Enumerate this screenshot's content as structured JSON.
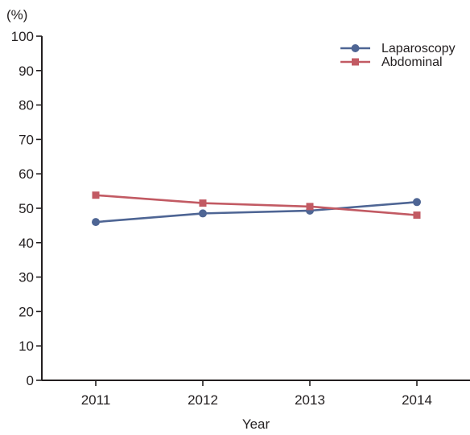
{
  "chart_data": {
    "type": "line",
    "title": "",
    "xlabel": "Year",
    "ylabel": "(%)",
    "categories": [
      "2011",
      "2012",
      "2013",
      "2014"
    ],
    "ylim": [
      0,
      100
    ],
    "yticks": [
      "0",
      "10",
      "20",
      "30",
      "40",
      "50",
      "60",
      "70",
      "80",
      "90",
      "100"
    ],
    "grid": false,
    "legend_position": "top-right",
    "series": [
      {
        "name": "Laparoscopy",
        "values": [
          46,
          48.5,
          49.3,
          51.8
        ],
        "color": "#4e6594",
        "marker": "circle"
      },
      {
        "name": "Abdominal",
        "values": [
          53.8,
          51.5,
          50.5,
          48
        ],
        "color": "#c25a63",
        "marker": "square"
      }
    ]
  }
}
